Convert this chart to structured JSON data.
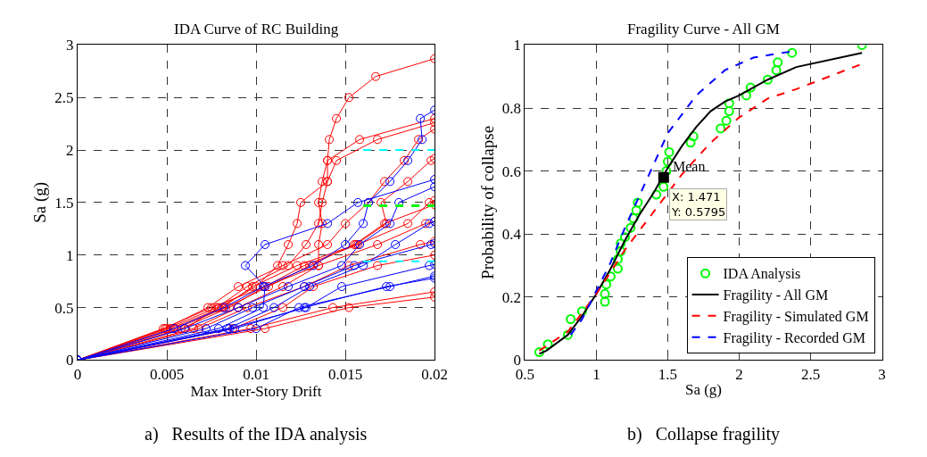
{
  "chart_data": [
    {
      "type": "line",
      "title": "IDA Curve of RC Building",
      "xlabel": "Max Inter-Story Drift",
      "ylabel": "Sa (g)",
      "xlim": [
        0,
        0.02
      ],
      "xticks": [
        0,
        0.005,
        0.01,
        0.015,
        0.02
      ],
      "ylim": [
        0,
        3
      ],
      "yticks": [
        0,
        0.5,
        1,
        1.5,
        2,
        2.5,
        3
      ],
      "grid": true,
      "legend": false,
      "marker": "circle",
      "line_style": "solid",
      "annotations": [
        "a)   Results of the IDA analysis"
      ],
      "series": [
        {
          "color": "#ff0000",
          "x": [
            0,
            0.0048,
            0.0075,
            0.0105,
            0.0135,
            0.0135,
            0.0137,
            0.0135,
            0.0137,
            0.014,
            0.0141,
            0.0145,
            0.0152,
            0.0167,
            0.02
          ],
          "values": [
            0,
            0.3,
            0.5,
            0.7,
            0.9,
            1.1,
            1.3,
            1.5,
            1.7,
            1.9,
            2.1,
            2.3,
            2.5,
            2.7,
            2.87
          ]
        },
        {
          "color": "#ff0000",
          "x": [
            0,
            0.005,
            0.0078,
            0.0095,
            0.0118,
            0.0128,
            0.0135,
            0.0137,
            0.014,
            0.014,
            0.0158,
            0.02
          ],
          "values": [
            0,
            0.3,
            0.5,
            0.7,
            0.9,
            1.1,
            1.3,
            1.5,
            1.7,
            1.9,
            2.1,
            2.3
          ]
        },
        {
          "color": "#ff0000",
          "x": [
            0,
            0.0049,
            0.0073,
            0.009,
            0.0115,
            0.014,
            0.015,
            0.0163,
            0.0172,
            0.0183,
            0.0191,
            0.02
          ],
          "values": [
            0,
            0.3,
            0.5,
            0.7,
            0.9,
            1.1,
            1.3,
            1.5,
            1.7,
            1.9,
            2.1,
            2.2
          ]
        },
        {
          "color": "#ff0000",
          "x": [
            0,
            0.0052,
            0.0081,
            0.0098,
            0.0123,
            0.0156,
            0.0173,
            0.017,
            0.0185,
            0.0198,
            0.02
          ],
          "values": [
            0,
            0.3,
            0.5,
            0.7,
            0.9,
            1.1,
            1.3,
            1.5,
            1.7,
            1.9,
            1.92
          ]
        },
        {
          "color": "#ff0000",
          "x": [
            0,
            0.0058,
            0.0085,
            0.0105,
            0.0127,
            0.0157,
            0.0185,
            0.0197,
            0.02
          ],
          "values": [
            0,
            0.3,
            0.5,
            0.7,
            0.9,
            1.1,
            1.3,
            1.5,
            1.52
          ]
        },
        {
          "color": "#ff0000",
          "x": [
            0,
            0.0065,
            0.009,
            0.0115,
            0.0135,
            0.0168,
            0.0195,
            0.02
          ],
          "values": [
            0,
            0.3,
            0.5,
            0.7,
            0.9,
            1.1,
            1.3,
            1.32
          ]
        },
        {
          "color": "#ff0000",
          "x": [
            0,
            0.0068,
            0.0095,
            0.0127,
            0.0152,
            0.0192,
            0.02
          ],
          "values": [
            0,
            0.3,
            0.5,
            0.7,
            0.9,
            1.1,
            1.13
          ]
        },
        {
          "color": "#ff0000",
          "x": [
            0,
            0.0097,
            0.0143,
            0.02
          ],
          "values": [
            0,
            0.3,
            0.5,
            0.65
          ]
        },
        {
          "color": "#ff0000",
          "x": [
            0,
            0.0105,
            0.0152,
            0.02
          ],
          "values": [
            0,
            0.3,
            0.5,
            0.6
          ]
        },
        {
          "color": "#ff0000",
          "x": [
            0,
            0.0087,
            0.0115,
            0.0132,
            0.0168,
            0.02
          ],
          "values": [
            0,
            0.3,
            0.5,
            0.7,
            0.9,
            1.0
          ]
        },
        {
          "color": "#ff0000",
          "x": [
            0,
            0.006,
            0.0079,
            0.01,
            0.0112,
            0.0118,
            0.0123,
            0.0125,
            0.014,
            0.0145,
            0.0168,
            0.02
          ],
          "values": [
            0,
            0.3,
            0.5,
            0.7,
            0.9,
            1.1,
            1.3,
            1.5,
            1.7,
            1.9,
            2.1,
            2.26
          ]
        },
        {
          "color": "#ff0000",
          "x": [
            0,
            0.0055,
            0.0083,
            0.0107,
            0.013,
            0.0155,
            0.0172,
            0.02
          ],
          "values": [
            0,
            0.3,
            0.5,
            0.7,
            0.9,
            1.1,
            1.3,
            1.48
          ]
        },
        {
          "color": "#0000ff",
          "x": [
            0,
            0.0054,
            0.0082,
            0.0104,
            0.0132,
            0.015,
            0.016,
            0.0163,
            0.0175,
            0.0185,
            0.0193,
            0.0192,
            0.02
          ],
          "values": [
            0,
            0.3,
            0.5,
            0.7,
            0.9,
            1.1,
            1.3,
            1.5,
            1.7,
            1.9,
            2.1,
            2.3,
            2.38
          ]
        },
        {
          "color": "#0000ff",
          "x": [
            0,
            0.0084,
            0.011,
            0.013,
            0.016,
            0.0178,
            0.0197,
            0.02
          ],
          "values": [
            0,
            0.3,
            0.5,
            0.7,
            0.9,
            1.1,
            1.3,
            1.32
          ]
        },
        {
          "color": "#0000ff",
          "x": [
            0,
            0.0079,
            0.0104,
            0.0105,
            0.0094,
            0.0105,
            0.014,
            0.0157,
            0.02
          ],
          "values": [
            0,
            0.3,
            0.5,
            0.7,
            0.9,
            1.1,
            1.3,
            1.5,
            1.72
          ]
        },
        {
          "color": "#0000ff",
          "x": [
            0,
            0.01,
            0.0124,
            0.0175,
            0.02
          ],
          "values": [
            0,
            0.3,
            0.5,
            0.7,
            0.8
          ]
        },
        {
          "color": "#0000ff",
          "x": [
            0,
            0.0088,
            0.0127,
            0.0173,
            0.02
          ],
          "values": [
            0,
            0.3,
            0.5,
            0.7,
            0.78
          ]
        },
        {
          "color": "#0000ff",
          "x": [
            0,
            0.0072,
            0.0098,
            0.0127,
            0.0155,
            0.0198,
            0.02
          ],
          "values": [
            0,
            0.3,
            0.5,
            0.7,
            0.9,
            1.1,
            1.11
          ]
        },
        {
          "color": "#0000ff",
          "x": [
            0,
            0.0085,
            0.0128,
            0.0148,
            0.0197,
            0.02
          ],
          "values": [
            0,
            0.3,
            0.5,
            0.7,
            0.9,
            0.91
          ]
        },
        {
          "color": "#0000ff",
          "x": [
            0,
            0.006,
            0.009,
            0.0118,
            0.0148,
            0.0158,
            0.0175,
            0.018,
            0.02
          ],
          "values": [
            0,
            0.3,
            0.5,
            0.7,
            0.9,
            1.1,
            1.3,
            1.5,
            1.65
          ]
        },
        {
          "color": "#00ffff",
          "marker": "none",
          "line_style": "dashed",
          "x": [
            0.016,
            0.02
          ],
          "values": [
            2.0,
            2.0
          ]
        },
        {
          "color": "#00ff00",
          "marker": "none",
          "line_style": "dashed",
          "x": [
            0.016,
            0.02
          ],
          "values": [
            1.47,
            1.47
          ]
        },
        {
          "color": "#00ffff",
          "marker": "none",
          "line_style": "dashed",
          "x": [
            0.016,
            0.02
          ],
          "values": [
            0.94,
            0.94
          ]
        }
      ]
    },
    {
      "type": "line",
      "title": "Fragility Curve - All GM",
      "xlabel": "Sa (g)",
      "ylabel": "Probability of collapse",
      "xlim": [
        0.5,
        3
      ],
      "xticks": [
        0.5,
        1,
        1.5,
        2,
        2.5,
        3
      ],
      "ylim": [
        0,
        1
      ],
      "yticks": [
        0,
        0.2,
        0.4,
        0.6,
        0.8,
        1
      ],
      "grid": true,
      "legend": "bottom right",
      "annotations": [
        "b)   Collapse fragility",
        {
          "text": "Mean",
          "x": 1.471,
          "y": 0.5795
        },
        {
          "text": "X: 1.471\nY: 0.5795",
          "x": 1.471,
          "y": 0.5795
        }
      ],
      "series": [
        {
          "type": "scatter",
          "name": "IDA Analysis",
          "color": "#00ff00",
          "marker": "circle",
          "x": [
            0.6,
            0.66,
            0.8,
            0.82,
            0.9,
            1.06,
            1.06,
            1.07,
            1.1,
            1.15,
            1.15,
            1.17,
            1.17,
            1.2,
            1.24,
            1.26,
            1.28,
            1.29,
            1.42,
            1.47,
            1.49,
            1.5,
            1.51,
            1.66,
            1.68,
            1.87,
            1.91,
            1.93,
            1.93,
            2.05,
            2.08,
            2.2,
            2.26,
            2.27,
            2.37,
            2.86
          ],
          "values": [
            0.025,
            0.05,
            0.08,
            0.13,
            0.155,
            0.185,
            0.21,
            0.24,
            0.265,
            0.29,
            0.32,
            0.345,
            0.37,
            0.39,
            0.42,
            0.45,
            0.475,
            0.5,
            0.525,
            0.55,
            0.6,
            0.63,
            0.66,
            0.69,
            0.71,
            0.735,
            0.76,
            0.79,
            0.815,
            0.84,
            0.865,
            0.89,
            0.92,
            0.945,
            0.975,
            1.0
          ]
        },
        {
          "type": "line",
          "name": "Fragility - All GM",
          "color": "#000000",
          "marker": "none",
          "line_style": "solid",
          "x": [
            0.6,
            0.65,
            0.8,
            0.9,
            1.0,
            1.1,
            1.2,
            1.3,
            1.4,
            1.5,
            1.6,
            1.7,
            1.8,
            1.9,
            2.0,
            2.2,
            2.4,
            2.86
          ],
          "values": [
            0.02,
            0.03,
            0.08,
            0.14,
            0.21,
            0.29,
            0.38,
            0.46,
            0.53,
            0.61,
            0.68,
            0.74,
            0.79,
            0.82,
            0.84,
            0.89,
            0.93,
            0.975
          ]
        },
        {
          "type": "line",
          "name": "Fragility - Simulated GM",
          "color": "#ff0000",
          "marker": "none",
          "line_style": "dashed",
          "x": [
            0.6,
            0.8,
            1.0,
            1.2,
            1.4,
            1.6,
            1.8,
            2.0,
            2.2,
            2.4,
            2.86
          ],
          "values": [
            0.03,
            0.09,
            0.21,
            0.35,
            0.47,
            0.59,
            0.69,
            0.77,
            0.83,
            0.86,
            0.94
          ]
        },
        {
          "type": "line",
          "name": "Fragility - Recorded GM",
          "color": "#0000ff",
          "marker": "none",
          "line_style": "dashed",
          "x": [
            0.82,
            0.9,
            1.0,
            1.1,
            1.2,
            1.3,
            1.4,
            1.5,
            1.7,
            1.9,
            2.1,
            2.37
          ],
          "values": [
            0.08,
            0.13,
            0.22,
            0.31,
            0.42,
            0.52,
            0.62,
            0.72,
            0.84,
            0.92,
            0.96,
            0.98
          ]
        },
        {
          "type": "scatter",
          "color": "#000000",
          "marker": "square",
          "x": [
            1.471
          ],
          "values": [
            0.5795
          ]
        }
      ]
    }
  ]
}
